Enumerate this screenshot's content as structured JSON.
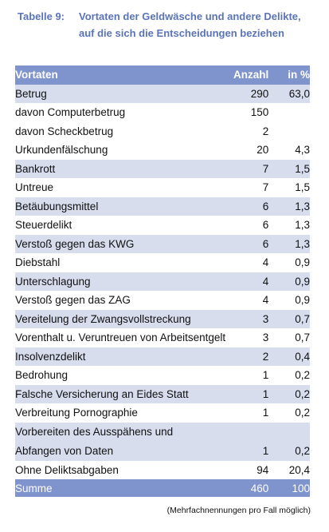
{
  "caption": {
    "label": "Tabelle 9:",
    "line1": "Vortaten der Geldwäsche und andere Delikte,",
    "line2": "auf die sich die Entscheidungen beziehen"
  },
  "table": {
    "headers": {
      "name": "Vortaten",
      "count": "Anzahl",
      "percent": "in %"
    },
    "rows": [
      {
        "name": "Betrug",
        "count": "290",
        "percent": "63,0",
        "indent": 0,
        "shade": true
      },
      {
        "name": "davon Computerbetrug",
        "count": "150",
        "percent": "",
        "indent": 1,
        "shade": false
      },
      {
        "name": "davon Scheckbetrug",
        "count": "2",
        "percent": "",
        "indent": 2,
        "shade": false
      },
      {
        "name": "Urkundenfälschung",
        "count": "20",
        "percent": "4,3",
        "indent": 0,
        "shade": false
      },
      {
        "name": "Bankrott",
        "count": "7",
        "percent": "1,5",
        "indent": 0,
        "shade": true
      },
      {
        "name": "Untreue",
        "count": "7",
        "percent": "1,5",
        "indent": 0,
        "shade": false
      },
      {
        "name": "Betäubungsmittel",
        "count": "6",
        "percent": "1,3",
        "indent": 0,
        "shade": true
      },
      {
        "name": "Steuerdelikt",
        "count": "6",
        "percent": "1,3",
        "indent": 0,
        "shade": false
      },
      {
        "name": "Verstoß gegen das KWG",
        "count": "6",
        "percent": "1,3",
        "indent": 0,
        "shade": true
      },
      {
        "name": "Diebstahl",
        "count": "4",
        "percent": "0,9",
        "indent": 0,
        "shade": false
      },
      {
        "name": "Unterschlagung",
        "count": "4",
        "percent": "0,9",
        "indent": 0,
        "shade": true
      },
      {
        "name": "Verstoß gegen das ZAG",
        "count": "4",
        "percent": "0,9",
        "indent": 0,
        "shade": false
      },
      {
        "name": "Vereitelung der Zwangsvollstreckung",
        "count": "3",
        "percent": "0,7",
        "indent": 0,
        "shade": true
      },
      {
        "name": "Vorenthalt u. Veruntreuen von Arbeitsentgelt",
        "count": "3",
        "percent": "0,7",
        "indent": 0,
        "shade": false
      },
      {
        "name": "Insolvenzdelikt",
        "count": "2",
        "percent": "0,4",
        "indent": 0,
        "shade": true
      },
      {
        "name": "Bedrohung",
        "count": "1",
        "percent": "0,2",
        "indent": 0,
        "shade": false
      },
      {
        "name": "Falsche Versicherung an Eides Statt",
        "count": "1",
        "percent": "0,2",
        "indent": 0,
        "shade": true
      },
      {
        "name": "Verbreitung Pornographie",
        "count": "1",
        "percent": "0,2",
        "indent": 0,
        "shade": false
      }
    ],
    "multiline_row": {
      "line1": "Vorbereiten des Ausspähens und",
      "line2": "Abfangen von Daten",
      "count": "1",
      "percent": "0,2"
    },
    "last_row": {
      "name": "Ohne Deliktsabgaben",
      "count": "94",
      "percent": "20,4"
    },
    "total": {
      "name": "Summe",
      "count": "460",
      "percent": "100"
    }
  },
  "note": "(Mehrfachnennungen pro Fall möglich)",
  "colors": {
    "header": "#7f93cc",
    "shade": "#d7dded",
    "caption": "#5b73b8"
  }
}
